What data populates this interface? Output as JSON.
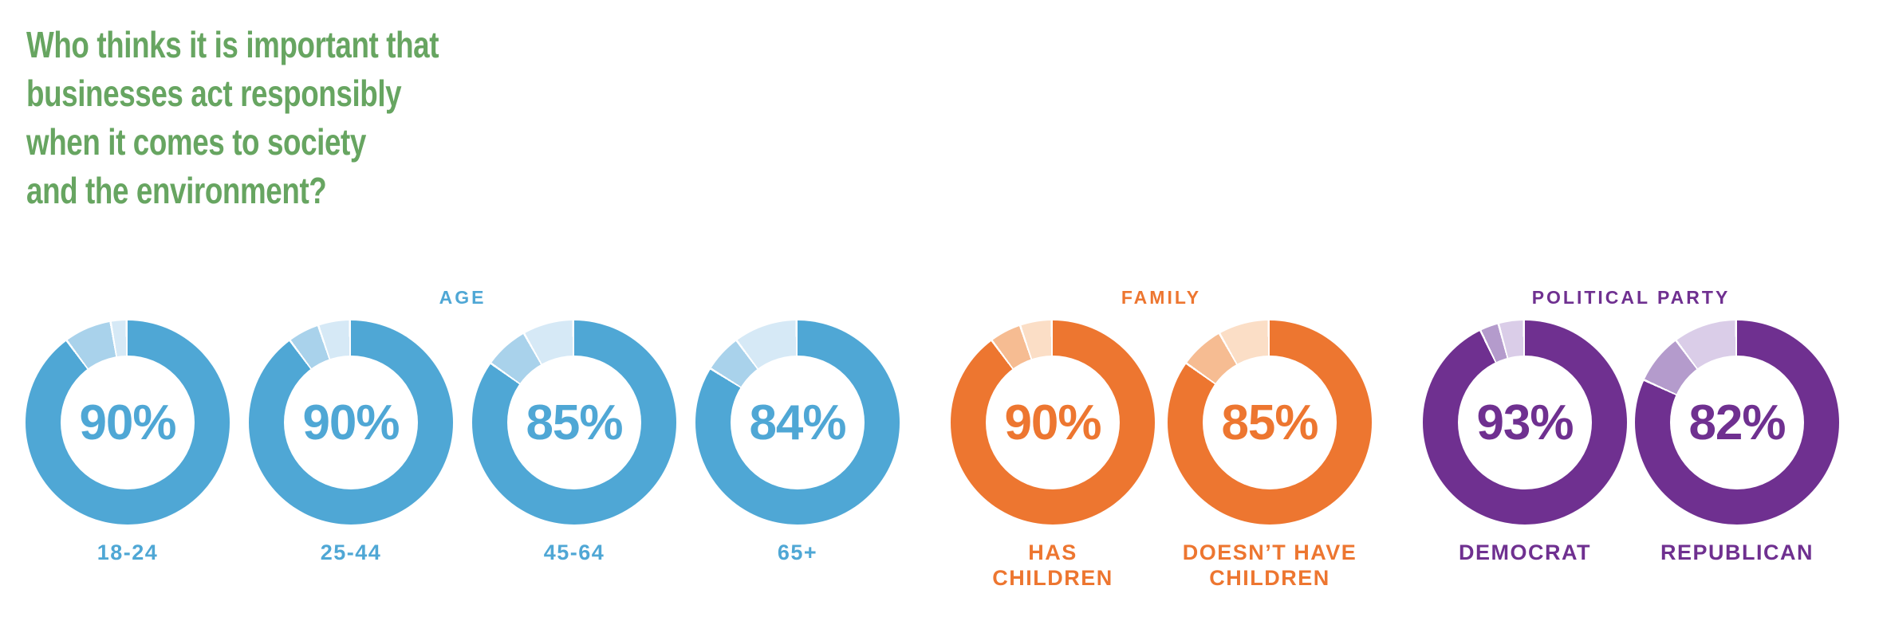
{
  "title": {
    "text": "Who thinks it is important that\nbusinesses act responsibly\nwhen it comes to society\nand the environment?",
    "color": "#67A561"
  },
  "chart_data": {
    "type": "donut",
    "title": "Who thinks it is important that businesses act responsibly when it comes to society and the environment?",
    "unit": "%",
    "layout_hint": "three groups of donut charts in one row; each donut shows main value clockwise from top, remainder split into two lighter segments with thin white separators",
    "groups": [
      {
        "label": "AGE",
        "color": "#4FA7D5",
        "light_color": "#A9D2EB",
        "lighter_color": "#D6E9F6",
        "donuts": [
          {
            "label": "18-24",
            "value": 90,
            "display": "90%",
            "segments": {
              "main": 90,
              "light": 7.5,
              "lighter": 2.5
            }
          },
          {
            "label": "25-44",
            "value": 90,
            "display": "90%",
            "segments": {
              "main": 90,
              "light": 5,
              "lighter": 5
            }
          },
          {
            "label": "45-64",
            "value": 85,
            "display": "85%",
            "segments": {
              "main": 85,
              "light": 7,
              "lighter": 8
            }
          },
          {
            "label": "65+",
            "value": 84,
            "display": "84%",
            "segments": {
              "main": 84,
              "light": 6,
              "lighter": 10
            }
          }
        ]
      },
      {
        "label": "FAMILY",
        "color": "#ED7630",
        "light_color": "#F6BC92",
        "lighter_color": "#FBDEC6",
        "donuts": [
          {
            "label": "HAS\nCHILDREN",
            "value": 90,
            "display": "90%",
            "segments": {
              "main": 90,
              "light": 5,
              "lighter": 5
            }
          },
          {
            "label": "DOESN’T HAVE\nCHILDREN",
            "value": 85,
            "display": "85%",
            "segments": {
              "main": 85,
              "light": 7,
              "lighter": 8
            }
          }
        ]
      },
      {
        "label": "POLITICAL PARTY",
        "color": "#6F3090",
        "light_color": "#B49BCC",
        "lighter_color": "#DACDE8",
        "donuts": [
          {
            "label": "DEMOCRAT",
            "value": 93,
            "display": "93%",
            "segments": {
              "main": 93,
              "light": 3,
              "lighter": 4
            }
          },
          {
            "label": "REPUBLICAN",
            "value": 82,
            "display": "82%",
            "segments": {
              "main": 82,
              "light": 8,
              "lighter": 10
            }
          }
        ]
      }
    ]
  }
}
